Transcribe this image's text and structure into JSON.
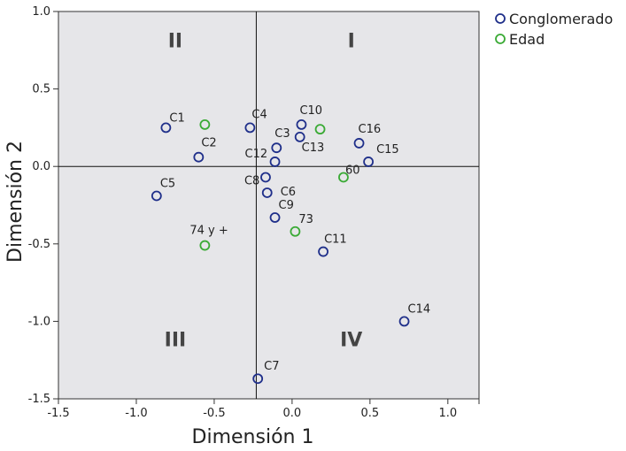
{
  "chart_data": {
    "type": "scatter",
    "xlabel": "Dimensión 1",
    "ylabel": "Dimensión 2",
    "xlim": [
      -1.5,
      1.2
    ],
    "ylim": [
      -1.5,
      1.0
    ],
    "x_ticks": [
      "-1.5",
      "-1.0",
      "-0.5",
      "0.0",
      "0.5",
      "1.0"
    ],
    "y_ticks": [
      "1.0",
      "0.5",
      "0.0",
      "-0.5",
      "-1.0",
      "-1.5"
    ],
    "x_tick_values": [
      -1.5,
      -1.0,
      -0.5,
      0.0,
      0.5,
      1.0
    ],
    "y_tick_values": [
      1.0,
      0.5,
      0.0,
      -0.5,
      -1.0,
      -1.5
    ],
    "reference_lines": {
      "x": -0.23,
      "y": 0.0
    },
    "quadrant_labels": [
      {
        "label": "I",
        "x": 0.38,
        "y": 0.77
      },
      {
        "label": "II",
        "x": -0.75,
        "y": 0.77
      },
      {
        "label": "III",
        "x": -0.75,
        "y": -1.16
      },
      {
        "label": "IV",
        "x": 0.38,
        "y": -1.16
      }
    ],
    "legend_position": "top-right",
    "series": [
      {
        "name": "Conglomerado",
        "color": "#1f2f8a",
        "points": [
          {
            "label": "C1",
            "x": -0.81,
            "y": 0.25
          },
          {
            "label": "C2",
            "x": -0.6,
            "y": 0.06
          },
          {
            "label": "C3",
            "x": -0.1,
            "y": 0.12
          },
          {
            "label": "C4",
            "x": -0.27,
            "y": 0.25
          },
          {
            "label": "C5",
            "x": -0.87,
            "y": -0.19
          },
          {
            "label": "C6",
            "x": -0.16,
            "y": -0.17
          },
          {
            "label": "C7",
            "x": -0.22,
            "y": -1.37
          },
          {
            "label": "C8",
            "x": -0.17,
            "y": -0.07
          },
          {
            "label": "C9",
            "x": -0.11,
            "y": -0.33
          },
          {
            "label": "C10",
            "x": 0.06,
            "y": 0.27
          },
          {
            "label": "C11",
            "x": 0.2,
            "y": -0.55
          },
          {
            "label": "C12",
            "x": -0.11,
            "y": 0.03
          },
          {
            "label": "C13",
            "x": 0.05,
            "y": 0.19
          },
          {
            "label": "C14",
            "x": 0.72,
            "y": -1.0
          },
          {
            "label": "C15",
            "x": 0.49,
            "y": 0.03
          },
          {
            "label": "C16",
            "x": 0.43,
            "y": 0.15
          }
        ]
      },
      {
        "name": "Edad",
        "color": "#3aaa35",
        "points": [
          {
            "label": "",
            "x": -0.56,
            "y": 0.27
          },
          {
            "label": "",
            "x": 0.18,
            "y": 0.24
          },
          {
            "label": "60",
            "x": 0.33,
            "y": -0.07
          },
          {
            "label": "73",
            "x": 0.02,
            "y": -0.42
          },
          {
            "label": "74 y +",
            "x": -0.56,
            "y": -0.51
          }
        ]
      }
    ]
  }
}
